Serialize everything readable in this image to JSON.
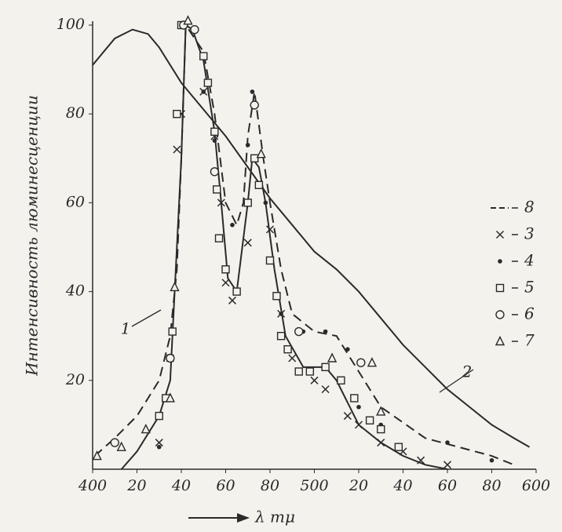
{
  "chart_data": {
    "type": "line",
    "y_label": "Интенсивность люминесценции",
    "x_label": "λ mμ",
    "xlim": [
      400,
      600
    ],
    "ylim": [
      0,
      100
    ],
    "xticks": [
      400,
      {
        "value": 420,
        "label": "20"
      },
      {
        "value": 440,
        "label": "40"
      },
      {
        "value": 460,
        "label": "60"
      },
      {
        "value": 480,
        "label": "80"
      },
      500,
      {
        "value": 520,
        "label": "20"
      },
      {
        "value": 540,
        "label": "40"
      },
      {
        "value": 560,
        "label": "60"
      },
      {
        "value": 580,
        "label": "80"
      },
      600
    ],
    "yticks": [
      20,
      40,
      60,
      80,
      100
    ],
    "series": [
      {
        "name": "1",
        "color": "#2a2a2a",
        "style": "solid",
        "marker": "none",
        "x": [
          413,
          420,
          430,
          435,
          437,
          440,
          442,
          445,
          450,
          455,
          458,
          461,
          465,
          470,
          472,
          475,
          478,
          482,
          487,
          495,
          505,
          510,
          515,
          520,
          530,
          540,
          550,
          560
        ],
        "values": [
          0,
          4,
          12,
          20,
          40,
          70,
          100,
          99,
          92,
          76,
          60,
          43,
          40,
          60,
          70,
          68,
          60,
          45,
          30,
          23,
          23,
          20,
          15,
          10,
          6,
          3,
          1,
          0
        ]
      },
      {
        "name": "2",
        "color": "#2a2a2a",
        "style": "solid",
        "marker": "none",
        "x": [
          400,
          410,
          418,
          425,
          430,
          440,
          450,
          460,
          470,
          480,
          490,
          500,
          510,
          520,
          530,
          540,
          550,
          560,
          570,
          580,
          590,
          597
        ],
        "values": [
          91,
          97,
          99,
          98,
          95,
          87,
          81,
          75,
          68,
          61,
          55,
          49,
          45,
          40,
          34,
          28,
          23,
          18,
          14,
          10,
          7,
          5
        ]
      },
      {
        "name": "8",
        "color": "#2a2a2a",
        "style": "dashed",
        "marker": "none",
        "x": [
          401,
          410,
          420,
          430,
          435,
          438,
          440,
          442,
          450,
          455,
          460,
          465,
          468,
          470,
          473,
          477,
          480,
          485,
          490,
          500,
          510,
          520,
          530,
          550,
          580,
          590
        ],
        "values": [
          3,
          7,
          12,
          20,
          30,
          45,
          70,
          100,
          94,
          80,
          60,
          55,
          60,
          75,
          85,
          70,
          60,
          45,
          35,
          31,
          30,
          22,
          14,
          7,
          3,
          1
        ]
      },
      {
        "name": "3",
        "color": "#2a2a2a",
        "style": "none",
        "marker": "x",
        "x": [
          430,
          435,
          438,
          440,
          450,
          455,
          458,
          460,
          463,
          470,
          480,
          485,
          490,
          500,
          505,
          515,
          520,
          530,
          540,
          548,
          560
        ],
        "values": [
          6,
          25,
          72,
          80,
          85,
          75,
          60,
          42,
          38,
          51,
          54,
          35,
          25,
          20,
          18,
          12,
          10,
          6,
          4,
          2,
          1
        ]
      },
      {
        "name": "4",
        "color": "#2a2a2a",
        "style": "none",
        "marker": "dot",
        "x": [
          430,
          445,
          450,
          455,
          463,
          470,
          472,
          478,
          485,
          495,
          505,
          515,
          520,
          530,
          560,
          580
        ],
        "values": [
          5,
          99,
          85,
          74,
          55,
          73,
          85,
          60,
          35,
          31,
          31,
          27,
          14,
          10,
          6,
          2
        ]
      },
      {
        "name": "5",
        "color": "#2a2a2a",
        "style": "none",
        "marker": "square",
        "x": [
          430,
          433,
          436,
          438,
          440,
          450,
          452,
          455,
          456,
          457,
          460,
          465,
          470,
          473,
          475,
          480,
          483,
          485,
          488,
          493,
          498,
          505,
          512,
          518,
          525,
          530,
          538
        ],
        "values": [
          12,
          16,
          31,
          80,
          100,
          93,
          87,
          76,
          63,
          52,
          45,
          40,
          60,
          70,
          64,
          47,
          39,
          30,
          27,
          22,
          22,
          23,
          20,
          16,
          11,
          9,
          5
        ]
      },
      {
        "name": "6",
        "color": "#2a2a2a",
        "style": "none",
        "marker": "circle",
        "x": [
          410,
          435,
          441,
          446,
          455,
          473,
          493,
          521
        ],
        "values": [
          6,
          25,
          100,
          99,
          67,
          82,
          31,
          24
        ]
      },
      {
        "name": "7",
        "color": "#2a2a2a",
        "style": "none",
        "marker": "triangle",
        "x": [
          402,
          413,
          424,
          435,
          437,
          443,
          476,
          508,
          526,
          530
        ],
        "values": [
          3,
          5,
          9,
          16,
          41,
          101,
          71,
          25,
          24,
          13
        ]
      }
    ]
  }
}
